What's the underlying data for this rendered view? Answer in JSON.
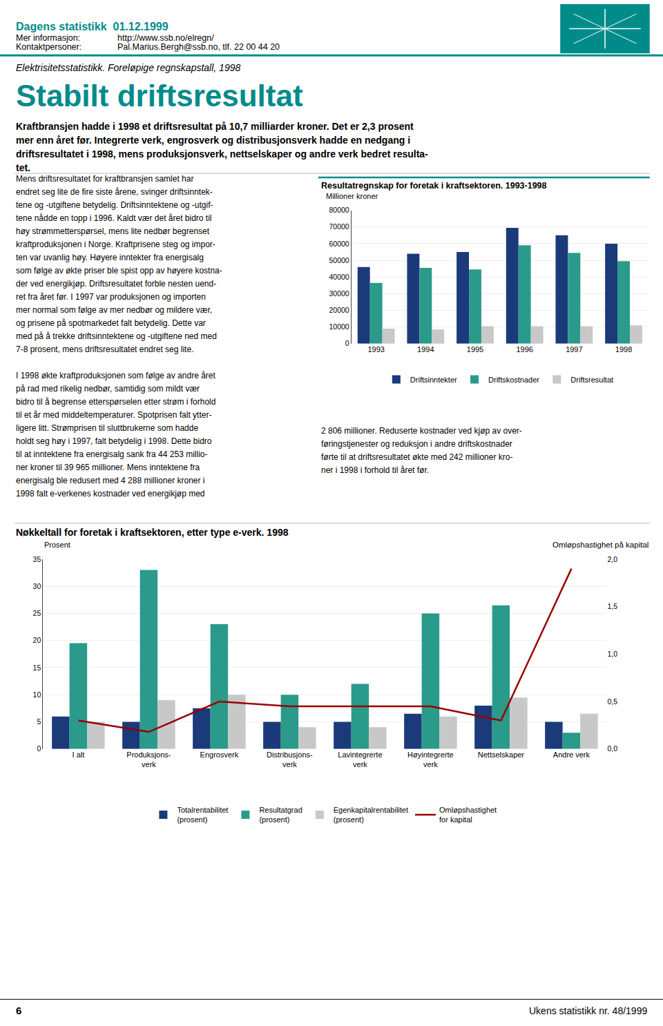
{
  "title": "Stabilt driftsresultat",
  "subtitle": "Elektrisitetsstatistikk. Foreløpige regnskapstall, 1998",
  "color": "#008b8b",
  "annotations": [
    "Dagens statistikk  01.12.1999",
    "Mer informasjon:",
    "http://www.ssb.no/elregn/",
    "Kontaktpersoner:",
    "Pal.Marius.Bergh@ssb.no, tlf. 22 00 44 20",
    "Kraftbransjen hadde i 1998 et driftsresultat på 10,7 milliarder kroner. Det er 2,3 prosent\nmer enn året før. Integrerte verk, engrosverk og distribusjonsverk hadde en nedgang i\ndriftsresultatet i 1998, mens produksjonsverk, nettselskaper og andre verk bedret resulta-\ntet.",
    "Mens driftsresultatet for kraftbransjen samlet har\nendret seg lite de fire siste årene, svinger driftsinntek-\ntene og -utgiftene betydelig. Driftsinntektene og -utgif-\ntene nådde en topp i 1996. Kaldt vær det året bidro til\nhøy strømmetterspørsel, mens lite nedbør begrenset\nkraftproduksjonen i Norge. Kraftprisene steg og impor-\nten var uvanlig høy. Høyere inntekter fra energisalg\nsom følge av økte priser ble spist opp av høyere kostna-\nder ved energikjøp. Driftsresultatet forble nesten uend-\nret fra året før. I 1997 var produksjonen og importen\nmer normal som følge av mer nedbør og mildere vær,\nog prisene på spotmarkedet falt betydelig. Dette var\nmed på å trekke driftsinntektene og -utgiftene ned med\n7-8 prosent, mens driftsresultatet endret seg lite.\n\nI 1998 økte kraftproduksjonen som følge av andre året\npå rad med rikelig nedbør, samtidig som mildt vær\nbidro til å begrense etterspørselen etter strøm i forhold\ntil et år med middeltemperaturer. Spotprisen falt ytter-\nligere litt. Strømprisen til sluttbrukerne som hadde\nholdt seg høy i 1997, falt betydelig i 1998. Dette bidro\ntil at inntektene fra energisalg sank fra 44 253 millio-\nner kroner til 39 965 millioner. Mens inntektene fra\nenergisalg ble redusert med 4 288 millioner kroner i\n1998 falt e-verkenes kostnader ved energikjøp med",
    "2 806 millioner. Reduserte kostnader ved kjøp av over-\nføringstjenester og reduksjon i andre driftskostnader\nførte til at driftsresultatet økte med 242 millioner kro-\nner i 1998 i forhold til året før.",
    "6",
    "Ukens statistikk nr. 48/1999"
  ],
  "chart_data": [
    {
      "type": "bar",
      "title": "Resultatregnskap for foretak i kraftsektoren. 1993-1998",
      "ylabel": "Millioner kroner",
      "categories": [
        "1993",
        "1994",
        "1995",
        "1996",
        "1997",
        "1998"
      ],
      "series": [
        {
          "name": "Driftsinntekter",
          "color": "#1a3a7a",
          "values": [
            46000,
            54000,
            55000,
            69500,
            65000,
            60000
          ]
        },
        {
          "name": "Driftskostnader",
          "color": "#2a9a8a",
          "values": [
            36500,
            45500,
            44500,
            59000,
            54500,
            49500
          ]
        },
        {
          "name": "Driftsresultat",
          "color": "#c8c8c8",
          "values": [
            9000,
            8500,
            10500,
            10500,
            10500,
            11000
          ]
        }
      ],
      "ylim": [
        0,
        80000
      ],
      "yticks": [
        0,
        10000,
        20000,
        30000,
        40000,
        50000,
        60000,
        70000,
        80000
      ],
      "grid": true,
      "legend": "bottom"
    },
    {
      "type": "bar",
      "title": "Nøkkeltall for foretak i kraftsektoren, etter type e-verk. 1998",
      "ylabel": "Prosent",
      "y2label": "Omløpshastighet på kapital",
      "categories": [
        "I alt",
        "Produksjons-\nverk",
        "Engrosverk",
        "Distribusjons-\nverk",
        "Lavintegrerte\nverk",
        "Høyintegrerte\nverk",
        "Nettselskaper",
        "Andre verk"
      ],
      "series": [
        {
          "name": "Totalrentabilitet\n(prosent)",
          "color": "#1a3a7a",
          "values": [
            6,
            5,
            7.5,
            5,
            5,
            6.5,
            8,
            5
          ]
        },
        {
          "name": "Resultatgrad\n(prosent)",
          "color": "#2a9a8a",
          "values": [
            19.5,
            33,
            23,
            10,
            12,
            25,
            26.5,
            3
          ]
        },
        {
          "name": "Egenkapitalrentabilitet\n(prosent)",
          "color": "#c8c8c8",
          "values": [
            5,
            9,
            10,
            4,
            4,
            6,
            9.5,
            6.5
          ]
        },
        {
          "name": "Omløpshastighet\nfor kapital",
          "type": "line",
          "axis": "y2",
          "color": "#990000",
          "values": [
            0.3,
            0.18,
            0.5,
            0.45,
            0.45,
            0.45,
            0.3,
            1.9
          ]
        }
      ],
      "ylim": [
        0,
        35
      ],
      "yticks": [
        0,
        5,
        10,
        15,
        20,
        25,
        30,
        35
      ],
      "y2lim": [
        0.0,
        2.0
      ],
      "y2ticks": [
        {
          "value": 0.0,
          "label": "0,0"
        },
        {
          "value": 0.5,
          "label": "0,5"
        },
        {
          "value": 1.0,
          "label": "1,0"
        },
        {
          "value": 1.5,
          "label": "1,5"
        },
        {
          "value": 2.0,
          "label": "2,0"
        }
      ],
      "grid": true,
      "legend": "bottom"
    }
  ]
}
